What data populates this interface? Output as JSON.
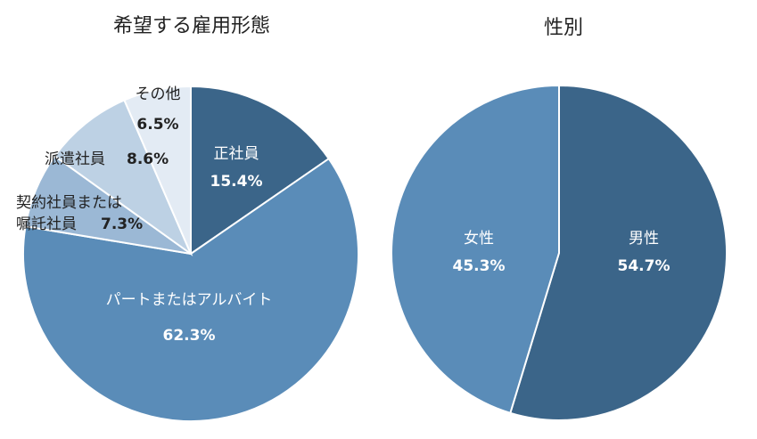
{
  "chart_data": [
    {
      "type": "pie",
      "title": "希望する雇用形態",
      "slices": [
        {
          "label": "正社員",
          "value": 15.4,
          "pct_text": "15.4%",
          "color": "#3b6589"
        },
        {
          "label": "パートまたはアルバイト",
          "value": 62.3,
          "pct_text": "62.3%",
          "color": "#5a8cb8"
        },
        {
          "label_lines": [
            "契約社員または",
            "嘱託社員"
          ],
          "value": 7.3,
          "pct_text": "7.3%",
          "color": "#9bb8d5"
        },
        {
          "label": "派遣社員",
          "value": 8.6,
          "pct_text": "8.6%",
          "color": "#bdd1e4"
        },
        {
          "label": "その他",
          "value": 6.5,
          "pct_text": "6.5%",
          "color": "#e3ebf4"
        }
      ]
    },
    {
      "type": "pie",
      "title": "性別",
      "slices": [
        {
          "label": "男性",
          "value": 54.7,
          "pct_text": "54.7%",
          "color": "#3b6589"
        },
        {
          "label": "女性",
          "value": 45.3,
          "pct_text": "45.3%",
          "color": "#5a8cb8"
        }
      ]
    }
  ]
}
